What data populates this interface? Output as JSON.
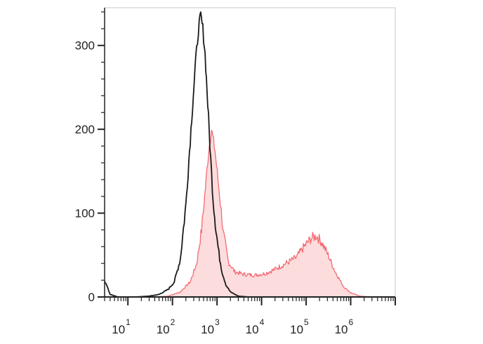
{
  "chart_data": {
    "type": "area",
    "title": "",
    "xlabel": "",
    "ylabel": "",
    "x_scale": "log",
    "xlim": [
      3,
      10000000
    ],
    "ylim": [
      0,
      345
    ],
    "grid": false,
    "legend": "none",
    "x_ticks": [
      {
        "base": "10",
        "exp": "1",
        "value": 10
      },
      {
        "base": "10",
        "exp": "2",
        "value": 100
      },
      {
        "base": "10",
        "exp": "3",
        "value": 1000
      },
      {
        "base": "10",
        "exp": "4",
        "value": 10000
      },
      {
        "base": "10",
        "exp": "5",
        "value": 100000
      },
      {
        "base": "10",
        "exp": "6",
        "value": 1000000
      }
    ],
    "y_ticks": [
      {
        "label": "0",
        "value": 0
      },
      {
        "label": "100",
        "value": 100
      },
      {
        "label": "200",
        "value": 200
      },
      {
        "label": "300",
        "value": 300
      }
    ],
    "series": [
      {
        "color": "#1a1a1a",
        "fill": "none",
        "points": [
          [
            3,
            20
          ],
          [
            4,
            3
          ],
          [
            6,
            0
          ],
          [
            15,
            0
          ],
          [
            30,
            1
          ],
          [
            50,
            3
          ],
          [
            80,
            9
          ],
          [
            110,
            18
          ],
          [
            150,
            45
          ],
          [
            200,
            110
          ],
          [
            260,
            200
          ],
          [
            320,
            270
          ],
          [
            380,
            318
          ],
          [
            430,
            335
          ],
          [
            480,
            320
          ],
          [
            540,
            290
          ],
          [
            620,
            230
          ],
          [
            720,
            165
          ],
          [
            820,
            115
          ],
          [
            950,
            80
          ],
          [
            1100,
            52
          ],
          [
            1300,
            30
          ],
          [
            1600,
            14
          ],
          [
            2000,
            6
          ],
          [
            3000,
            1
          ],
          [
            5000,
            0
          ],
          [
            10000000,
            0
          ]
        ]
      },
      {
        "color": "#f36b74",
        "fill": "#fcdcdc",
        "points": [
          [
            3,
            0
          ],
          [
            40,
            0
          ],
          [
            80,
            1
          ],
          [
            150,
            6
          ],
          [
            250,
            18
          ],
          [
            350,
            40
          ],
          [
            450,
            80
          ],
          [
            550,
            130
          ],
          [
            650,
            175
          ],
          [
            750,
            200
          ],
          [
            900,
            175
          ],
          [
            1100,
            130
          ],
          [
            1400,
            75
          ],
          [
            1800,
            42
          ],
          [
            2500,
            30
          ],
          [
            4000,
            27
          ],
          [
            7000,
            26
          ],
          [
            12000,
            28
          ],
          [
            20000,
            33
          ],
          [
            35000,
            40
          ],
          [
            60000,
            47
          ],
          [
            90000,
            60
          ],
          [
            130000,
            70
          ],
          [
            170000,
            73
          ],
          [
            220000,
            66
          ],
          [
            300000,
            52
          ],
          [
            450000,
            30
          ],
          [
            700000,
            12
          ],
          [
            1000000,
            5
          ],
          [
            1600000,
            1
          ],
          [
            3000000,
            0
          ],
          [
            10000000,
            0
          ]
        ]
      }
    ]
  }
}
